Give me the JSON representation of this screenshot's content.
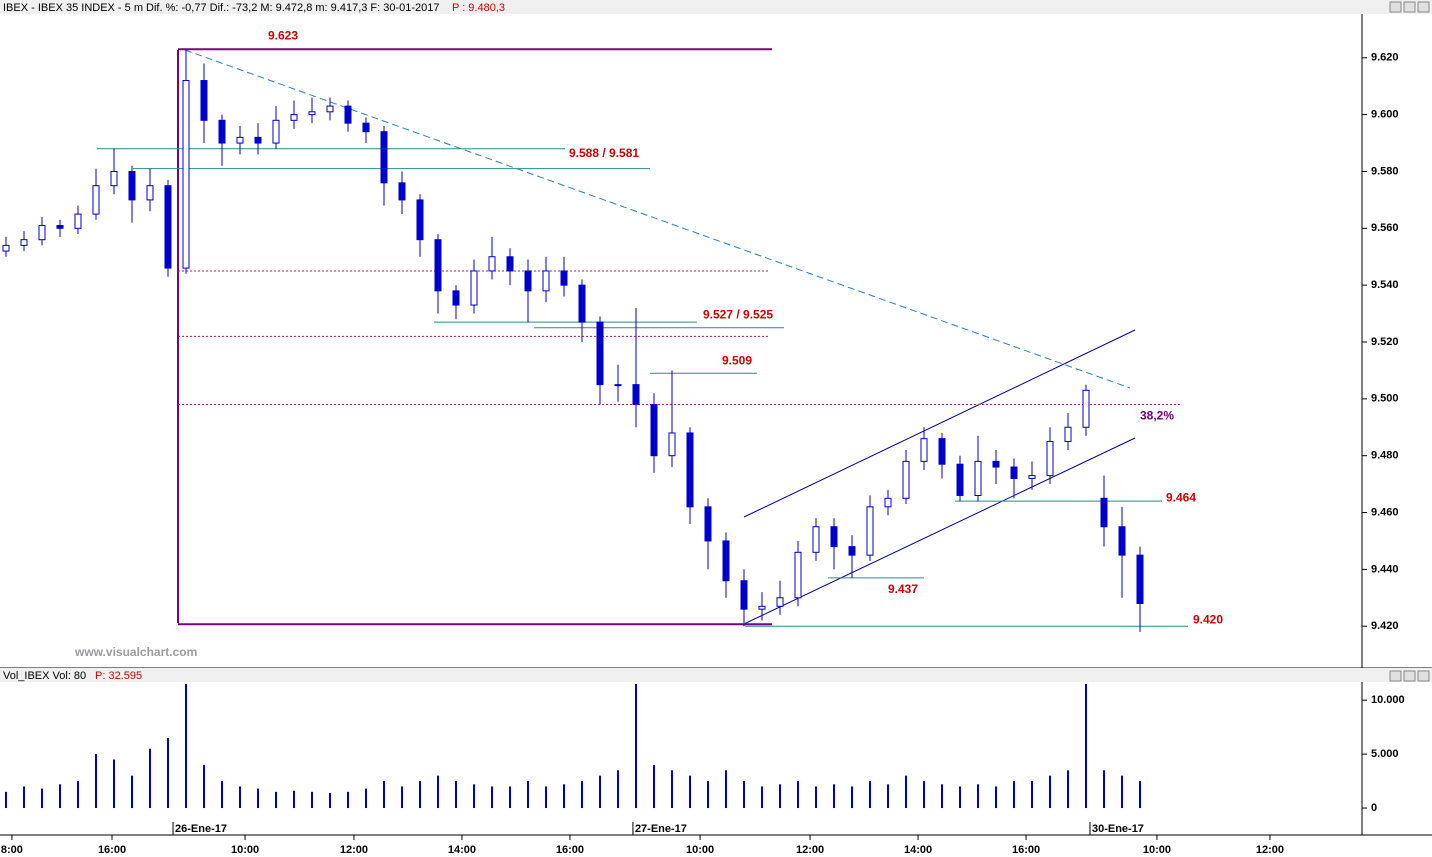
{
  "chart_data": {
    "type": "candlestick",
    "title": "IBEX - IBEX 35 INDEX - 5 m Dif. %: -0,77 Dif.: -73,2 M: 9.472,8 m: 9.417,3 F: 30-01-2017",
    "last_price": "P : 9.480,3",
    "watermark": "www.visualchart.com",
    "color_up": "#0000cc",
    "color_down": "#0000cc",
    "open": [
      9.552,
      9.554,
      9.556,
      9.561,
      9.56,
      9.565,
      9.575,
      9.58,
      9.57,
      9.575,
      9.546,
      9.612,
      9.598,
      9.59,
      9.592,
      9.59,
      9.598,
      9.6,
      9.601,
      9.603,
      9.597,
      9.594,
      9.576,
      9.57,
      9.556,
      9.538,
      9.533,
      9.545,
      9.55,
      9.545,
      9.538,
      9.545,
      9.54,
      9.527,
      9.505,
      9.505,
      9.498,
      9.48,
      9.488,
      9.462,
      9.45,
      9.436,
      9.426,
      9.427,
      9.43,
      9.446,
      9.455,
      9.448,
      9.445,
      9.462,
      9.465,
      9.478,
      9.486,
      9.477,
      9.466,
      9.478,
      9.476,
      9.472,
      9.473,
      9.485,
      9.49,
      9.465,
      9.455,
      9.445
    ],
    "high": [
      9.557,
      9.559,
      9.564,
      9.563,
      9.568,
      9.581,
      9.588,
      9.582,
      9.581,
      9.577,
      9.623,
      9.618,
      9.6,
      9.596,
      9.597,
      9.603,
      9.605,
      9.606,
      9.606,
      9.605,
      9.599,
      9.596,
      9.58,
      9.572,
      9.558,
      9.54,
      9.549,
      9.557,
      9.553,
      9.549,
      9.55,
      9.55,
      9.542,
      9.529,
      9.512,
      9.532,
      9.502,
      9.51,
      9.49,
      9.465,
      9.453,
      9.44,
      9.432,
      9.436,
      9.45,
      9.458,
      9.458,
      9.452,
      9.466,
      9.468,
      9.482,
      9.49,
      9.488,
      9.48,
      9.487,
      9.482,
      9.479,
      9.478,
      9.49,
      9.495,
      9.505,
      9.473,
      9.462,
      9.448
    ],
    "low": [
      9.55,
      9.552,
      9.554,
      9.557,
      9.558,
      9.563,
      9.572,
      9.562,
      9.566,
      9.543,
      9.544,
      9.59,
      9.582,
      9.586,
      9.586,
      9.588,
      9.595,
      9.597,
      9.598,
      9.594,
      9.59,
      9.568,
      9.565,
      9.55,
      9.53,
      9.528,
      9.53,
      9.542,
      9.54,
      9.527,
      9.534,
      9.536,
      9.52,
      9.498,
      9.499,
      9.49,
      9.474,
      9.476,
      9.456,
      9.44,
      9.43,
      9.42,
      9.422,
      9.424,
      9.427,
      9.443,
      9.44,
      9.437,
      9.443,
      9.459,
      9.463,
      9.475,
      9.472,
      9.464,
      9.464,
      9.47,
      9.465,
      9.468,
      9.47,
      9.482,
      9.487,
      9.448,
      9.43,
      9.418
    ],
    "close": [
      9.554,
      9.556,
      9.561,
      9.56,
      9.565,
      9.575,
      9.58,
      9.57,
      9.575,
      9.546,
      9.612,
      9.598,
      9.59,
      9.592,
      9.59,
      9.598,
      9.6,
      9.601,
      9.603,
      9.597,
      9.594,
      9.576,
      9.57,
      9.556,
      9.538,
      9.533,
      9.545,
      9.55,
      9.545,
      9.538,
      9.545,
      9.54,
      9.527,
      9.505,
      9.505,
      9.498,
      9.48,
      9.488,
      9.462,
      9.45,
      9.436,
      9.426,
      9.427,
      9.43,
      9.446,
      9.455,
      9.448,
      9.445,
      9.462,
      9.465,
      9.478,
      9.486,
      9.477,
      9.466,
      9.478,
      9.476,
      9.472,
      9.473,
      9.485,
      9.49,
      9.503,
      9.455,
      9.445,
      9.428
    ],
    "xlim": [
      -0.333,
      75.333
    ],
    "xticks": [
      {
        "value": 0.33,
        "label": "8:00"
      },
      {
        "value": 5.89,
        "label": "16:00"
      },
      {
        "value": 13.28,
        "label": "10:00"
      },
      {
        "value": 19.33,
        "label": "12:00"
      },
      {
        "value": 25.33,
        "label": "14:00"
      },
      {
        "value": 31.33,
        "label": "16:00"
      },
      {
        "value": 38.56,
        "label": "10:00"
      },
      {
        "value": 44.67,
        "label": "12:00"
      },
      {
        "value": 50.67,
        "label": "14:00"
      },
      {
        "value": 56.67,
        "label": "16:00"
      },
      {
        "value": 63.94,
        "label": "10:00"
      },
      {
        "value": 70.22,
        "label": "12:00"
      }
    ],
    "date_ticks": [
      {
        "value": 9.28,
        "label": "26-Ene-17"
      },
      {
        "value": 34.83,
        "label": "27-Ene-17"
      },
      {
        "value": 60.22,
        "label": "30-Ene-17"
      }
    ],
    "ylim": [
      9.406,
      9.634
    ],
    "yticks": [
      {
        "value": 9.62,
        "label": "9.620"
      },
      {
        "value": 9.6,
        "label": "9.600"
      },
      {
        "value": 9.58,
        "label": "9.580"
      },
      {
        "value": 9.56,
        "label": "9.560"
      },
      {
        "value": 9.54,
        "label": "9.540"
      },
      {
        "value": 9.52,
        "label": "9.520"
      },
      {
        "value": 9.5,
        "label": "9.500"
      },
      {
        "value": 9.48,
        "label": "9.480"
      },
      {
        "value": 9.46,
        "label": "9.460"
      },
      {
        "value": 9.44,
        "label": "9.440"
      },
      {
        "value": 9.42,
        "label": "9.420"
      }
    ],
    "price_levels": [
      {
        "label": "9.623",
        "values": [
          9.623
        ]
      },
      {
        "label": "9.588 / 9.581",
        "values": [
          9.588,
          9.581
        ]
      },
      {
        "label": "9.527 / 9.525",
        "values": [
          9.527,
          9.525
        ]
      },
      {
        "label": "9.509",
        "values": [
          9.509
        ]
      },
      {
        "label": "9.437",
        "values": [
          9.437
        ]
      },
      {
        "label": "9.464",
        "values": [
          9.464
        ]
      },
      {
        "label": "9.420",
        "values": [
          9.42
        ]
      }
    ],
    "retracement": {
      "label": "38,2%",
      "value": 9.498,
      "levels": [
        9.545,
        9.522
      ]
    },
    "volume": {
      "title": "Vol_IBEX Vol: 80",
      "last_value": "P: 32.595",
      "color": "#0000cc",
      "values": [
        1500,
        2000,
        1800,
        2200,
        2500,
        5000,
        4500,
        3000,
        5500,
        6500,
        11500,
        4000,
        2500,
        2000,
        1800,
        1500,
        1600,
        1500,
        1400,
        1500,
        1800,
        2500,
        2000,
        2500,
        3000,
        2500,
        2200,
        2000,
        2000,
        2500,
        2000,
        2200,
        2500,
        3000,
        3500,
        11500,
        4000,
        3500,
        3000,
        2500,
        3500,
        2500,
        2000,
        2200,
        2500,
        2000,
        2200,
        2000,
        2500,
        2200,
        3000,
        2500,
        2200,
        2000,
        2200,
        2000,
        2500,
        2500,
        3000,
        3500,
        11500,
        3500,
        3000,
        2500
      ],
      "ylim": [
        -2500,
        11500
      ],
      "yticks": [
        {
          "value": 10000,
          "label": "10.000"
        },
        {
          "value": 5000,
          "label": "5.000"
        },
        0
      ]
    }
  }
}
